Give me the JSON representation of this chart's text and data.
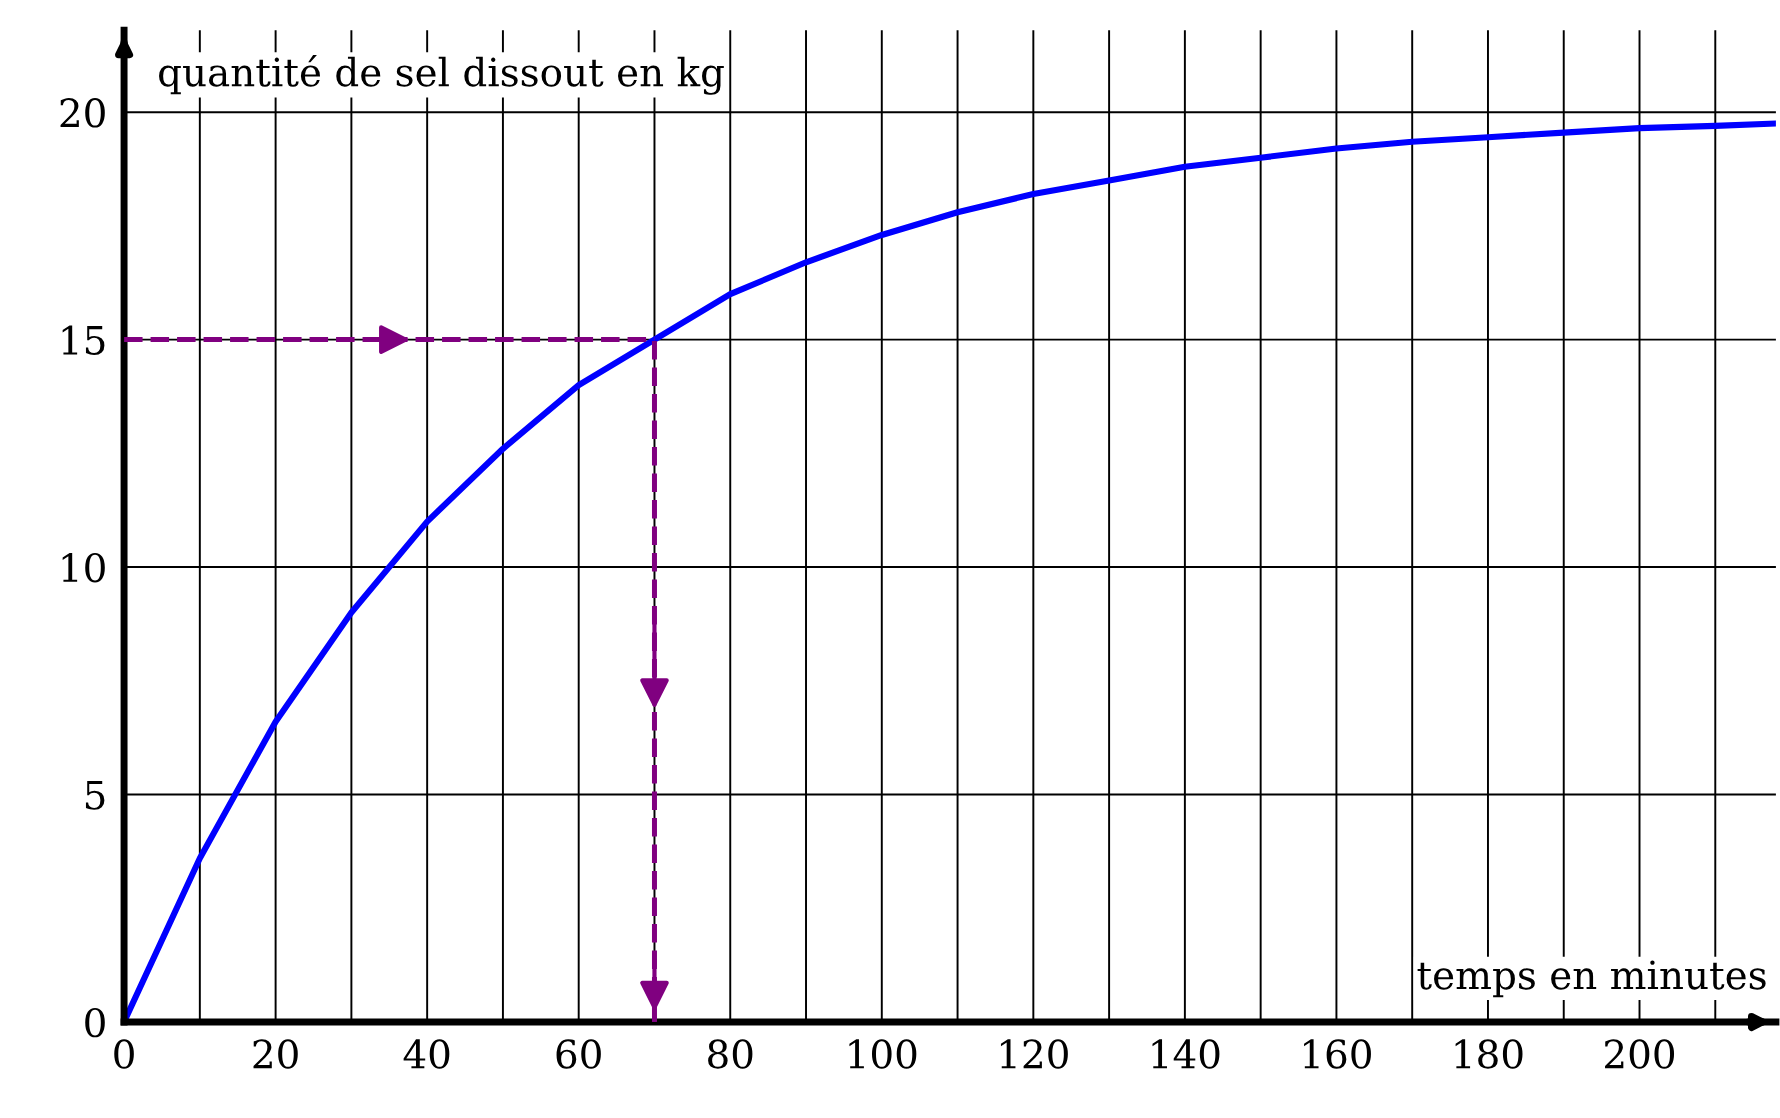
{
  "chart_data": {
    "type": "line",
    "xlabel": "temps en minutes",
    "ylabel": "quantité de sel dissout en kg",
    "series": [
      {
        "color": "#0000ff",
        "x": [
          0,
          10,
          20,
          30,
          40,
          50,
          60,
          70,
          80,
          90,
          100,
          110,
          120,
          130,
          140,
          150,
          160,
          170,
          180,
          190,
          200,
          210,
          218
        ],
        "values": [
          0,
          3.6,
          6.6,
          9.0,
          11.0,
          12.6,
          14.0,
          15.0,
          16.0,
          16.7,
          17.3,
          17.8,
          18.2,
          18.5,
          18.8,
          19.0,
          19.2,
          19.35,
          19.45,
          19.55,
          19.65,
          19.7,
          19.75
        ]
      }
    ],
    "xlim": [
      0,
      218
    ],
    "ylim": [
      0,
      21.8
    ],
    "xticks": [
      0,
      {
        "value": 10,
        "label": null
      },
      20,
      {
        "value": 30,
        "label": null
      },
      40,
      {
        "value": 50,
        "label": null
      },
      60,
      {
        "value": 70,
        "label": null
      },
      80,
      {
        "value": 90,
        "label": null
      },
      100,
      {
        "value": 110,
        "label": null
      },
      120,
      {
        "value": 130,
        "label": null
      },
      140,
      {
        "value": 150,
        "label": null
      },
      160,
      {
        "value": 170,
        "label": null
      },
      180,
      {
        "value": 190,
        "label": null
      },
      200,
      {
        "value": 210,
        "label": null
      }
    ],
    "yticks": [
      0,
      5,
      10,
      15,
      20
    ],
    "grid": true,
    "marker": "none",
    "line_style": "solid",
    "legend": false,
    "ref_lines": [
      {
        "axis": "y",
        "value": 15,
        "color": "#800080",
        "line_style": "dashed"
      },
      {
        "axis": "x",
        "value": 70,
        "color": "#800080",
        "line_style": "dashed"
      }
    ]
  }
}
